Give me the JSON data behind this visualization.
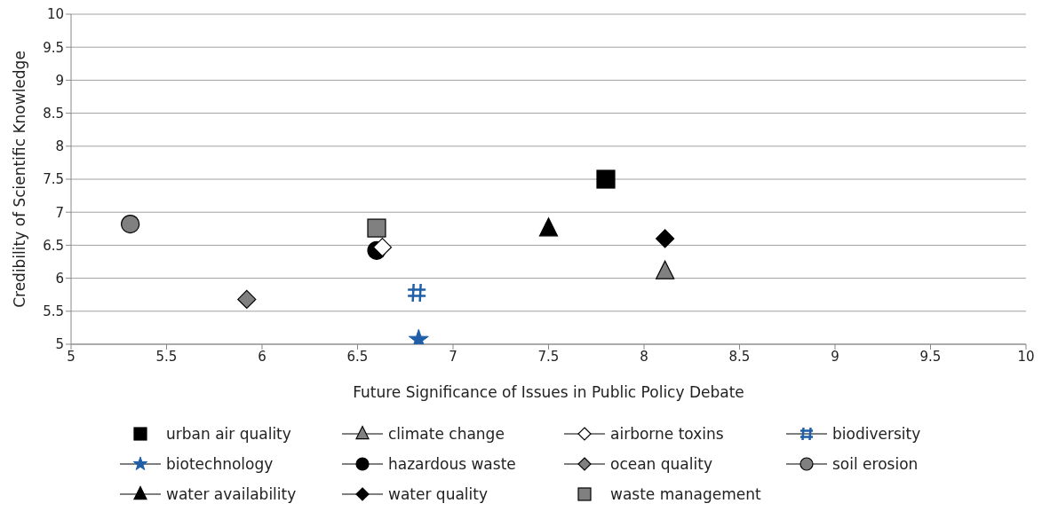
{
  "chart_data": {
    "type": "scatter",
    "xlabel": "Future Significance of Issues in Public Policy Debate",
    "ylabel": "Credibility of Scientific Knowledge",
    "xlim": [
      5,
      10
    ],
    "ylim": [
      5,
      10
    ],
    "xticks": [
      5,
      5.5,
      6,
      6.5,
      7,
      7.5,
      8,
      8.5,
      9,
      9.5,
      10
    ],
    "yticks": [
      5,
      5.5,
      6,
      6.5,
      7,
      7.5,
      8,
      8.5,
      9,
      9.5,
      10
    ],
    "grid": "y",
    "legend": "bottom",
    "series": [
      {
        "name": "urban air quality",
        "color": "#000000",
        "marker": "square",
        "x": [
          7.8
        ],
        "values": [
          7.5
        ]
      },
      {
        "name": "climate change",
        "color": "#808080",
        "marker": "triangle",
        "x": [
          8.11
        ],
        "values": [
          6.1
        ]
      },
      {
        "name": "airborne toxins",
        "color": "#ffffff",
        "marker": "diamond",
        "x": [
          6.63
        ],
        "values": [
          6.47
        ]
      },
      {
        "name": "biodiversity",
        "color": "#1f5fa8",
        "marker": "cross",
        "x": [
          6.81
        ],
        "values": [
          5.78
        ]
      },
      {
        "name": "biotechnology",
        "color": "#1f5fa8",
        "marker": "star",
        "x": [
          6.82
        ],
        "values": [
          5.07
        ]
      },
      {
        "name": "hazardous waste",
        "color": "#000000",
        "marker": "circle",
        "x": [
          6.6
        ],
        "values": [
          6.42
        ]
      },
      {
        "name": "ocean quality",
        "color": "#808080",
        "marker": "diamond",
        "x": [
          5.92
        ],
        "values": [
          5.68
        ]
      },
      {
        "name": "soil erosion",
        "color": "#808080",
        "marker": "circle",
        "x": [
          5.31
        ],
        "values": [
          6.82
        ]
      },
      {
        "name": "water availability",
        "color": "#000000",
        "marker": "triangle",
        "x": [
          7.5
        ],
        "values": [
          6.75
        ]
      },
      {
        "name": "water quality",
        "color": "#000000",
        "marker": "diamond",
        "x": [
          8.11
        ],
        "values": [
          6.6
        ]
      },
      {
        "name": "waste management",
        "color": "#808080",
        "marker": "square",
        "x": [
          6.6
        ],
        "values": [
          6.76
        ]
      }
    ]
  }
}
